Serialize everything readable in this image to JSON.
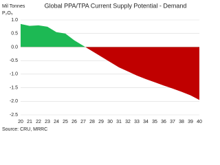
{
  "chart_data": {
    "type": "area",
    "title": "Global PPA/TPA Current Supply Potential - Demand",
    "y_label": [
      "Mil Tonnes",
      "P₂O₅"
    ],
    "source": "Source: CRU, MRRC",
    "x": [
      20,
      21,
      22,
      23,
      24,
      25,
      26,
      27,
      28,
      29,
      30,
      31,
      32,
      33,
      34,
      35,
      36,
      37,
      38,
      39,
      40
    ],
    "values": [
      0.85,
      0.78,
      0.8,
      0.75,
      0.55,
      0.5,
      0.25,
      0.05,
      -0.15,
      -0.35,
      -0.55,
      -0.75,
      -0.9,
      -1.05,
      -1.18,
      -1.3,
      -1.42,
      -1.53,
      -1.65,
      -1.78,
      -1.95
    ],
    "positive_color": "#1db954",
    "negative_color": "#c00000",
    "xlim": [
      20,
      40
    ],
    "xticks": [
      20,
      21,
      22,
      23,
      24,
      25,
      26,
      27,
      28,
      29,
      30,
      31,
      32,
      33,
      34,
      35,
      36,
      37,
      38,
      39,
      40
    ],
    "ylim": [
      -2.5,
      1.0
    ],
    "yticks": [
      {
        "value": -2.5,
        "label": "-2.5"
      },
      {
        "value": -2.0,
        "label": "-2.0"
      },
      {
        "value": -1.5,
        "label": "-1.5"
      },
      {
        "value": -1.0,
        "label": "-1.0"
      },
      {
        "value": -0.5,
        "label": "-0.5"
      },
      {
        "value": 0.0,
        "label": "0.0"
      },
      {
        "value": 0.5,
        "label": "0.5"
      },
      {
        "value": 1.0,
        "label": "1.0"
      }
    ],
    "grid": true
  }
}
